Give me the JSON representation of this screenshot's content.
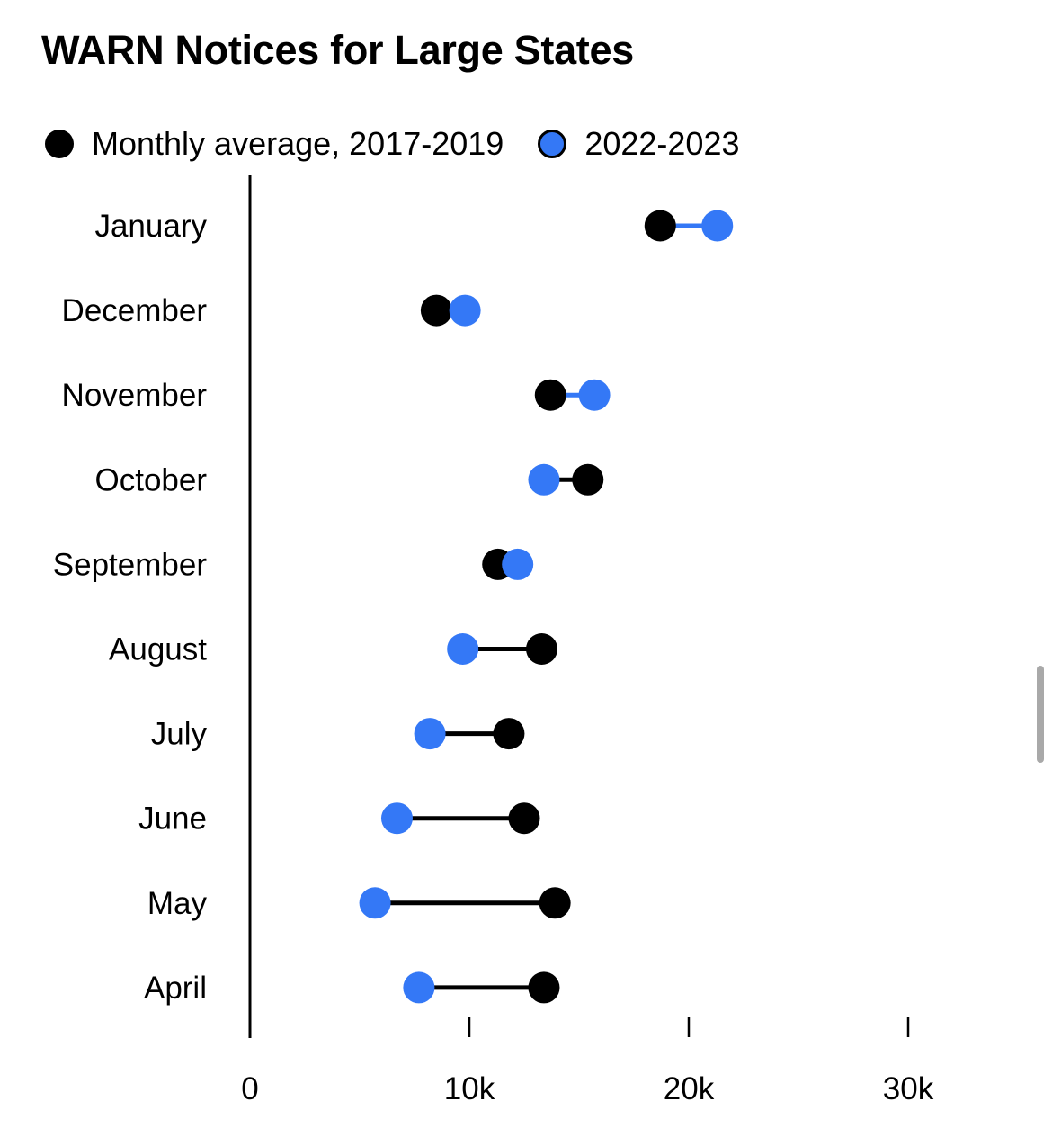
{
  "chart_data": {
    "type": "dumbbell",
    "title": "WARN Notices for Large States",
    "series": [
      {
        "name": "Monthly average, 2017-2019",
        "color": "#000000",
        "values": [
          18700,
          8500,
          13700,
          15400,
          11300,
          13300,
          11800,
          12500,
          13900,
          13400
        ]
      },
      {
        "name": "2022-2023",
        "color": "#3478f6",
        "values": [
          21300,
          9800,
          15700,
          13400,
          12200,
          9700,
          8200,
          6700,
          5700,
          7700
        ]
      }
    ],
    "categories": [
      "January",
      "December",
      "November",
      "October",
      "September",
      "August",
      "July",
      "June",
      "May",
      "April"
    ],
    "x_ticks": [
      {
        "value": 0,
        "label": "0"
      },
      {
        "value": 10000,
        "label": "10k"
      },
      {
        "value": 20000,
        "label": "20k"
      },
      {
        "value": 30000,
        "label": "30k"
      }
    ],
    "xlim": [
      0,
      30000
    ],
    "grid": false,
    "legend_position": "top-left"
  }
}
